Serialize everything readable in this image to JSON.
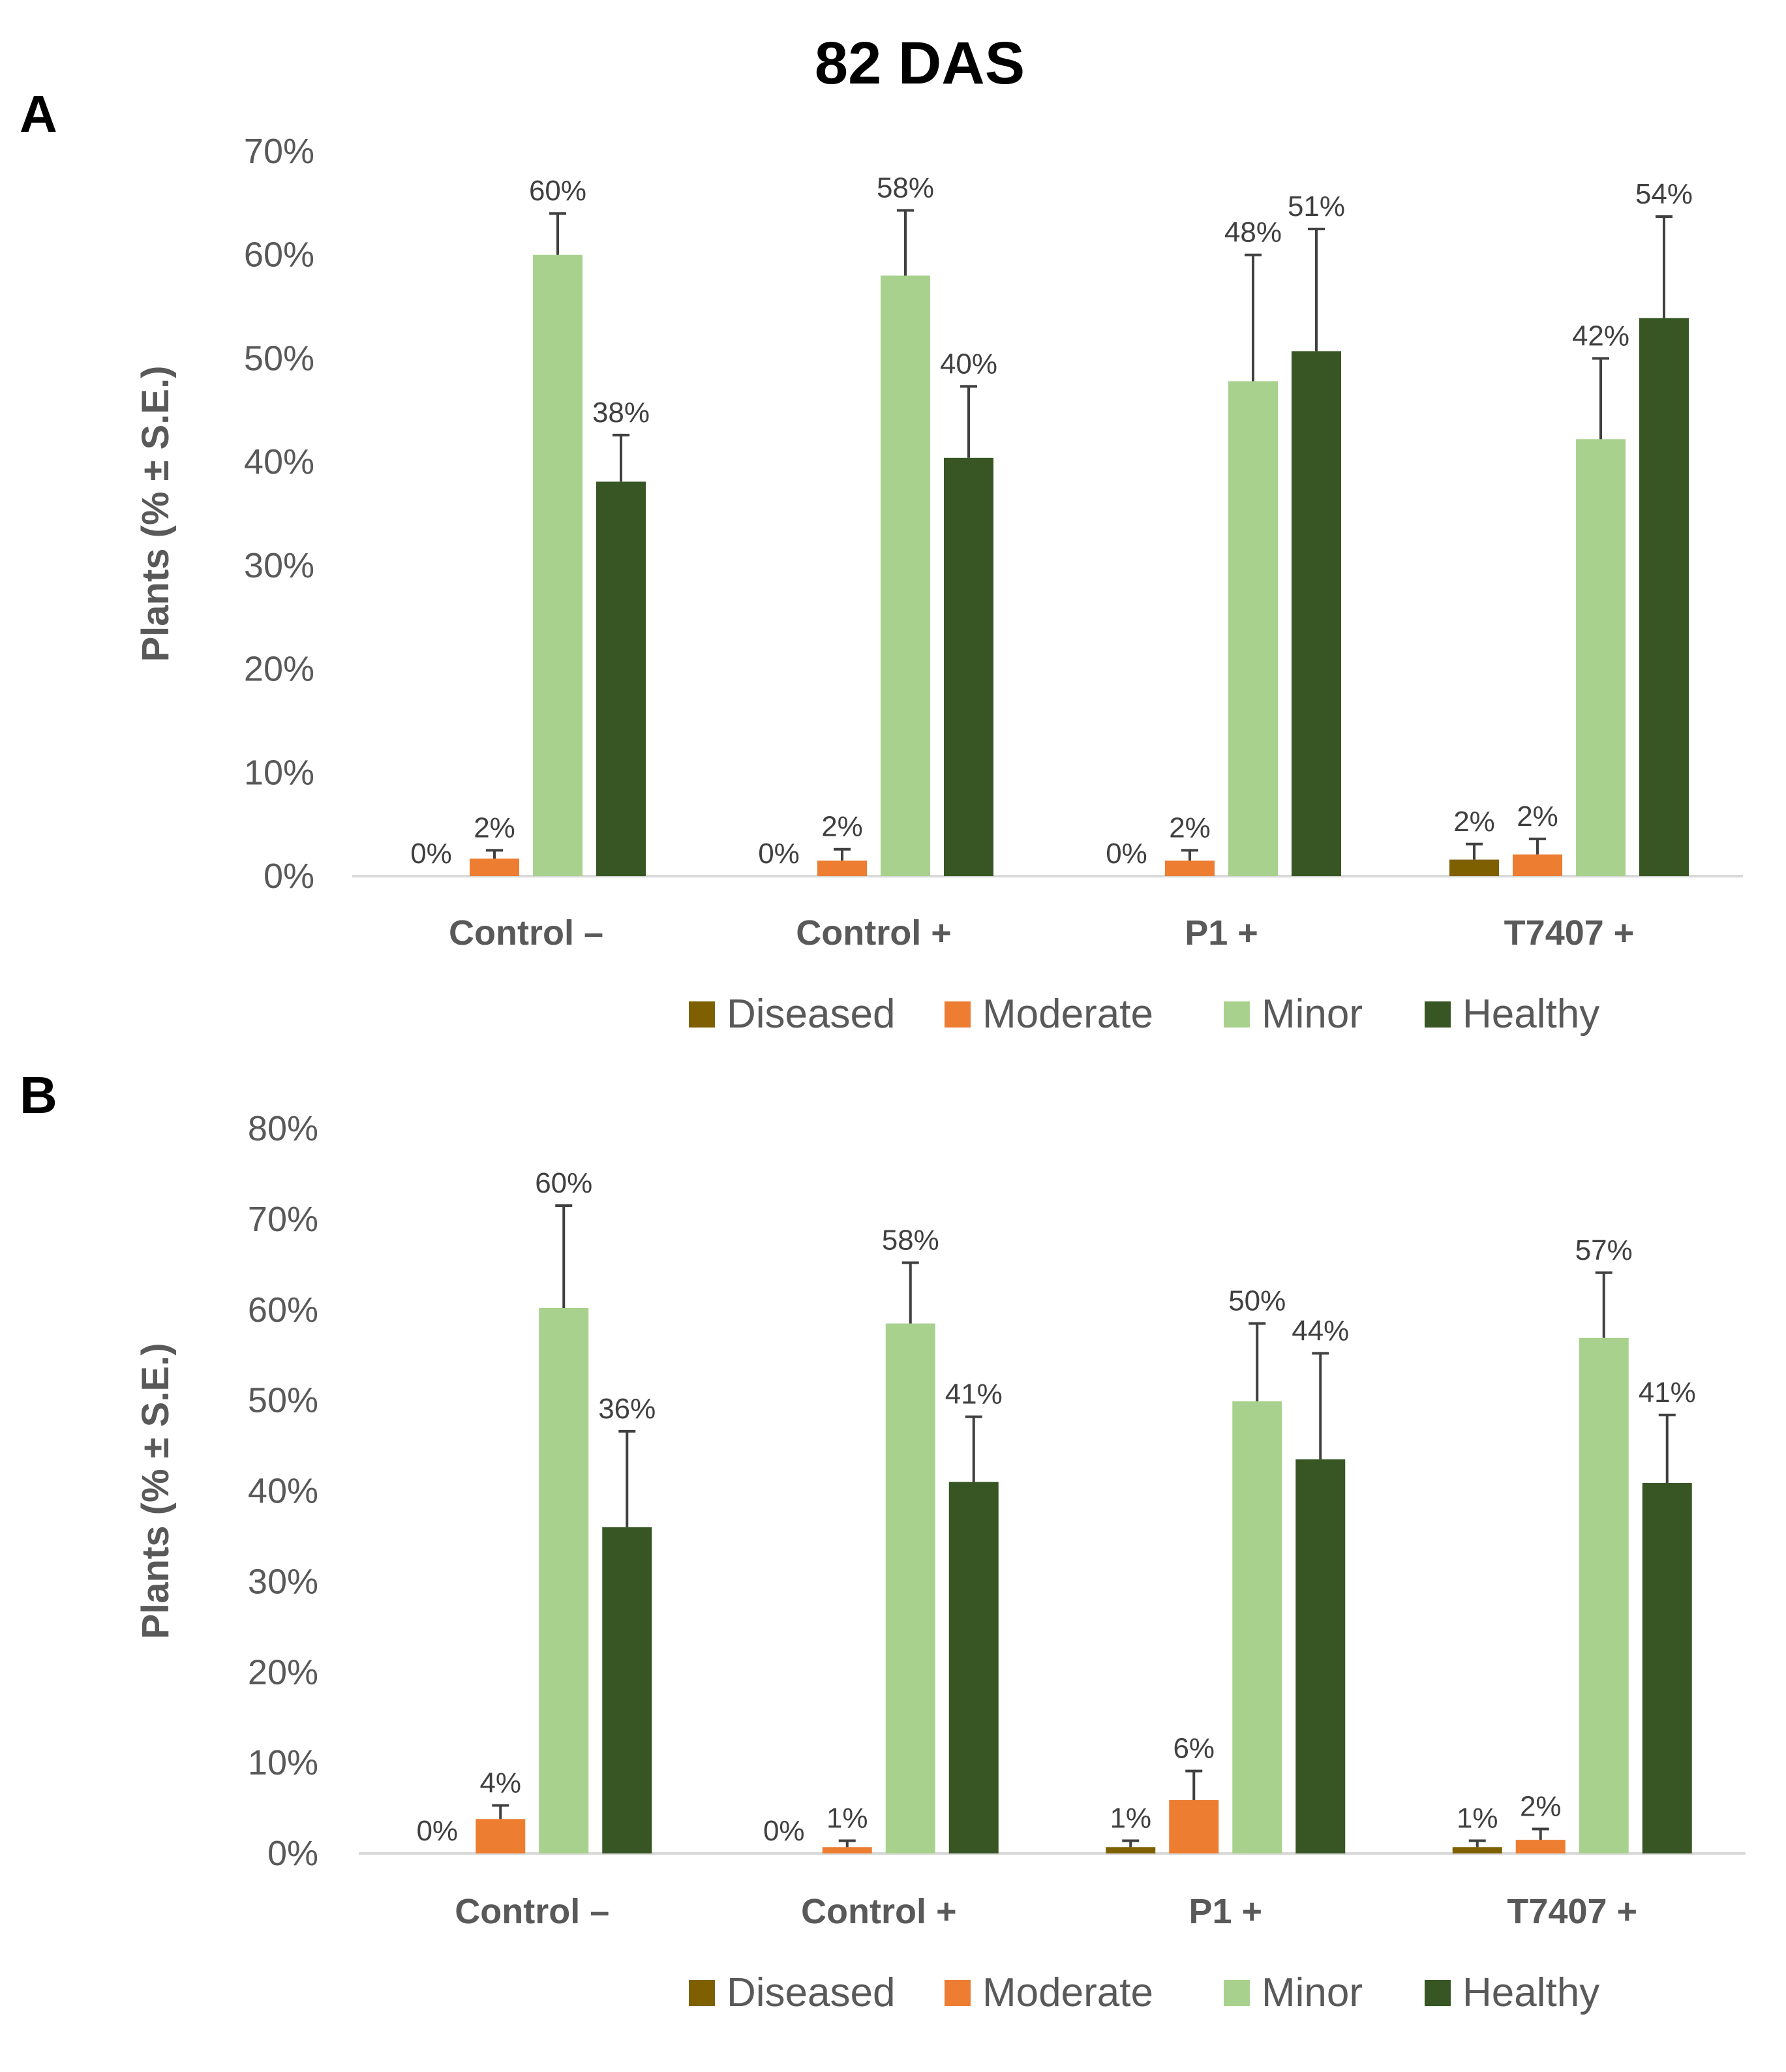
{
  "figure_title": "82 DAS",
  "chart_data": [
    {
      "panel": "A",
      "type": "bar",
      "categories": [
        "Control –",
        "Control +",
        "P1 +",
        "T7407 +"
      ],
      "ylabel": "Plants (% ± S.E.)",
      "xlabel": "",
      "ylim": [
        0,
        70
      ],
      "yticks": [
        0,
        10,
        20,
        30,
        40,
        50,
        60,
        70
      ],
      "tick_suffix": "%",
      "legend_position": "bottom",
      "series": [
        {
          "name": "Diseased",
          "color": "#7f6000",
          "values": [
            0,
            0,
            0,
            1.6
          ],
          "errors": [
            0,
            0,
            0,
            1.5
          ],
          "labels": [
            "0%",
            "0%",
            "0%",
            "2%"
          ]
        },
        {
          "name": "Moderate",
          "color": "#ed7d31",
          "values": [
            1.7,
            1.5,
            1.5,
            2.1
          ],
          "errors": [
            0.8,
            1.1,
            1.0,
            1.5
          ],
          "labels": [
            "2%",
            "2%",
            "2%",
            "2%"
          ]
        },
        {
          "name": "Minor",
          "color": "#a9d18e",
          "values": [
            60,
            58,
            47.8,
            42.2
          ],
          "errors": [
            4.0,
            6.3,
            12.2,
            7.8
          ],
          "labels": [
            "60%",
            "58%",
            "48%",
            "42%"
          ]
        },
        {
          "name": "Healthy",
          "color": "#375623",
          "values": [
            38.1,
            40.4,
            50.7,
            53.9
          ],
          "errors": [
            4.5,
            6.9,
            11.8,
            9.8
          ],
          "labels": [
            "38%",
            "40%",
            "51%",
            "54%"
          ]
        }
      ]
    },
    {
      "panel": "B",
      "type": "bar",
      "categories": [
        "Control –",
        "Control +",
        "P1 +",
        "T7407 +"
      ],
      "ylabel": "Plants (% ± S.E.)",
      "xlabel": "",
      "ylim": [
        0,
        80
      ],
      "yticks": [
        0,
        10,
        20,
        30,
        40,
        50,
        60,
        70,
        80
      ],
      "tick_suffix": "%",
      "legend_position": "bottom",
      "series": [
        {
          "name": "Diseased",
          "color": "#7f6000",
          "values": [
            0,
            0,
            0.7,
            0.7
          ],
          "errors": [
            0,
            0,
            0.7,
            0.7
          ],
          "labels": [
            "0%",
            "0%",
            "1%",
            "1%"
          ]
        },
        {
          "name": "Moderate",
          "color": "#ed7d31",
          "values": [
            3.8,
            0.7,
            5.9,
            1.5
          ],
          "errors": [
            1.5,
            0.7,
            3.2,
            1.2
          ],
          "labels": [
            "4%",
            "1%",
            "6%",
            "2%"
          ]
        },
        {
          "name": "Minor",
          "color": "#a9d18e",
          "values": [
            60.2,
            58.5,
            49.9,
            56.9
          ],
          "errors": [
            11.3,
            6.7,
            8.6,
            7.2
          ],
          "labels": [
            "60%",
            "58%",
            "50%",
            "57%"
          ]
        },
        {
          "name": "Healthy",
          "color": "#375623",
          "values": [
            36,
            41,
            43.5,
            40.9
          ],
          "errors": [
            10.6,
            7.2,
            11.7,
            7.5
          ],
          "labels": [
            "36%",
            "41%",
            "44%",
            "41%"
          ]
        }
      ]
    }
  ]
}
